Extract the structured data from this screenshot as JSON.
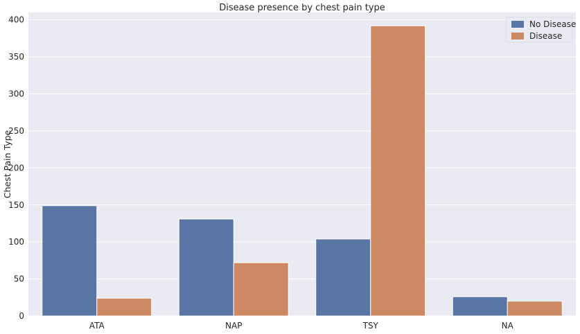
{
  "chart_data": {
    "type": "bar",
    "title": "Disease presence by chest pain type",
    "xlabel": "",
    "ylabel": "Chest Pain Type",
    "categories": [
      "ATA",
      "NAP",
      "TSY",
      "NA"
    ],
    "series": [
      {
        "name": "No Disease",
        "values": [
          149,
          131,
          104,
          26
        ],
        "color": "#5975a4"
      },
      {
        "name": "Disease",
        "values": [
          24,
          72,
          392,
          20
        ],
        "color": "#cc8963"
      }
    ],
    "ylim": [
      0,
      410
    ],
    "yticks": [
      0,
      50,
      100,
      150,
      200,
      250,
      300,
      350,
      400
    ],
    "grid": true,
    "legend_position": "top-right",
    "background_color": "#eaeaf2",
    "grid_color": "#ffffff"
  }
}
